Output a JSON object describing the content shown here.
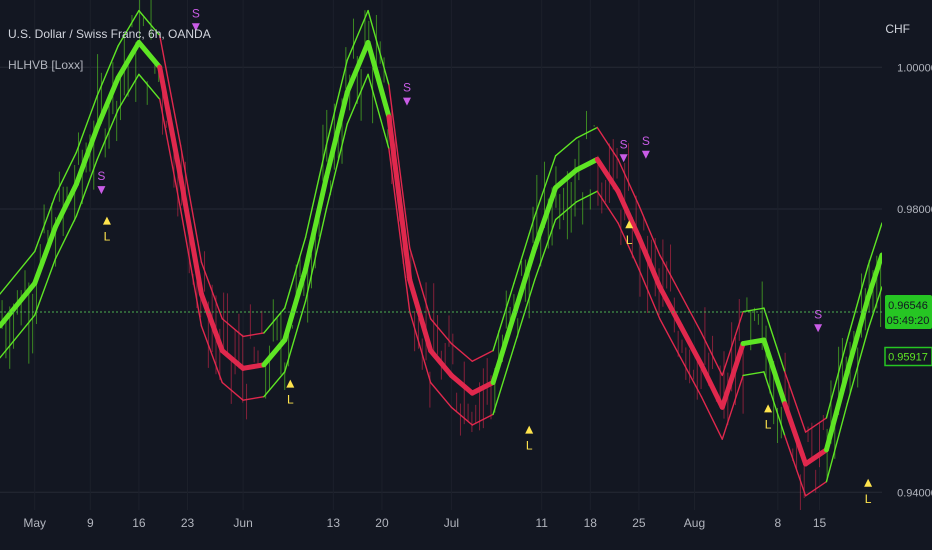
{
  "header": {
    "symbol_title": "U.S. Dollar / Swiss Franc, 6h, OANDA",
    "indicator_title": "HLHVB [Loxx]",
    "currency": "CHF"
  },
  "colors": {
    "background": "#131722",
    "grid": "#262a35",
    "bull": "#5ee524",
    "bear": "#e0284d",
    "short_marker": "#c95ce6",
    "long_marker": "#ffe44d",
    "price_line": "#4caf50",
    "price_tag_bg": "#26c623"
  },
  "chart_data": {
    "type": "line",
    "title": "",
    "xlabel": "",
    "ylabel": "",
    "ylim": [
      0.9375,
      1.0095
    ],
    "y_ticks": [
      "1.00000",
      "0.98000",
      "0.94000"
    ],
    "y_tick_values": [
      1.0,
      0.98,
      0.94
    ],
    "x_ticks": [
      "May",
      "9",
      "16",
      "23",
      "Jun",
      "13",
      "20",
      "Jul",
      "11",
      "18",
      "25",
      "Aug",
      "8",
      "15"
    ],
    "x_tick_index": [
      0,
      8,
      15,
      22,
      30,
      43,
      50,
      60,
      73,
      80,
      87,
      95,
      107,
      113
    ],
    "x_range_days": [
      -5,
      122
    ],
    "x": [
      -5,
      0,
      3,
      6,
      9,
      12,
      15,
      18,
      21,
      24,
      27,
      30,
      33,
      36,
      39,
      42,
      45,
      48,
      51,
      54,
      57,
      60,
      63,
      66,
      69,
      72,
      75,
      78,
      81,
      84,
      87,
      90,
      93,
      96,
      99,
      102,
      105,
      108,
      111,
      114,
      117,
      120,
      122
    ],
    "series": [
      {
        "values": [
          0.9635,
          0.9695,
          0.9775,
          0.9835,
          0.9915,
          0.9985,
          1.0035,
          1.0,
          0.9845,
          0.968,
          0.96,
          0.9575,
          0.958,
          0.9615,
          0.9715,
          0.9845,
          0.9965,
          1.0035,
          0.993,
          0.97,
          0.96,
          0.9565,
          0.954,
          0.9555,
          0.965,
          0.9745,
          0.983,
          0.9855,
          0.987,
          0.9825,
          0.976,
          0.969,
          0.9635,
          0.958,
          0.952,
          0.961,
          0.9615,
          0.9525,
          0.944,
          0.946,
          0.957,
          0.9675,
          0.9735
        ],
        "colors": [
          "bull",
          "bull",
          "bull",
          "bull",
          "bull",
          "bull",
          "bull",
          "bear",
          "bear",
          "bear",
          "bear",
          "bear",
          "bull",
          "bull",
          "bull",
          "bull",
          "bull",
          "bull",
          "bear",
          "bear",
          "bear",
          "bear",
          "bear",
          "bull",
          "bull",
          "bull",
          "bull",
          "bull",
          "bear",
          "bear",
          "bear",
          "bear",
          "bear",
          "bear",
          "bear",
          "bull",
          "bull",
          "bear",
          "bear",
          "bull",
          "bull",
          "bull",
          "bull"
        ]
      }
    ],
    "signals": [
      {
        "label": "S",
        "x": 12,
        "y": 0.9835,
        "kind": "short"
      },
      {
        "label": "L",
        "x": 13,
        "y": 0.9775,
        "kind": "long"
      },
      {
        "label": "S",
        "x": 29,
        "y": 1.0065,
        "kind": "short"
      },
      {
        "label": "L",
        "x": 46,
        "y": 0.9545,
        "kind": "long"
      },
      {
        "label": "S",
        "x": 67,
        "y": 0.996,
        "kind": "short"
      },
      {
        "label": "L",
        "x": 89,
        "y": 0.948,
        "kind": "long"
      },
      {
        "label": "S",
        "x": 106,
        "y": 0.988,
        "kind": "short"
      },
      {
        "label": "L",
        "x": 107,
        "y": 0.977,
        "kind": "long"
      },
      {
        "label": "S",
        "x": 110,
        "y": 0.9885,
        "kind": "short"
      },
      {
        "label": "L",
        "x": 132,
        "y": 0.951,
        "kind": "long"
      },
      {
        "label": "S",
        "x": 141,
        "y": 0.964,
        "kind": "short"
      },
      {
        "label": "L",
        "x": 150,
        "y": 0.9405,
        "kind": "long"
      }
    ],
    "last_price": {
      "value": 0.96546,
      "label": "0.96546",
      "timer": "05:49:20"
    },
    "secondary_price": {
      "value": 0.95917,
      "label": "0.95917"
    }
  }
}
